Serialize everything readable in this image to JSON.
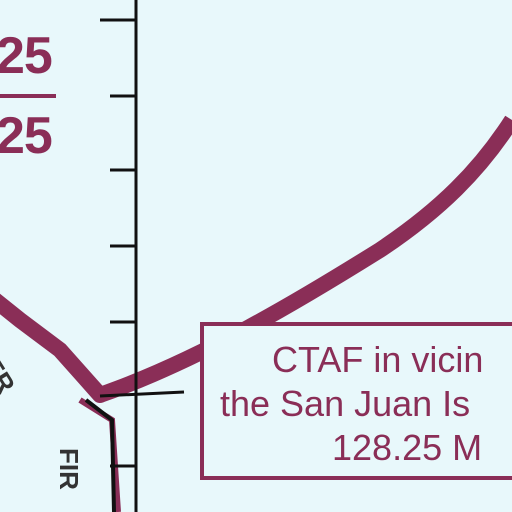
{
  "chart": {
    "frequency_top": "25",
    "frequency_bottom": "25",
    "ctaf_notice": {
      "line1": "CTAF in vicin",
      "line2": "the San Juan Is",
      "line3": "128.25 M"
    },
    "boundary_label_partial": "ER",
    "fir_label": "FIR"
  },
  "colors": {
    "background": "#e8f8fb",
    "airspace_maroon": "#8a2e57",
    "line_black": "#111111"
  }
}
